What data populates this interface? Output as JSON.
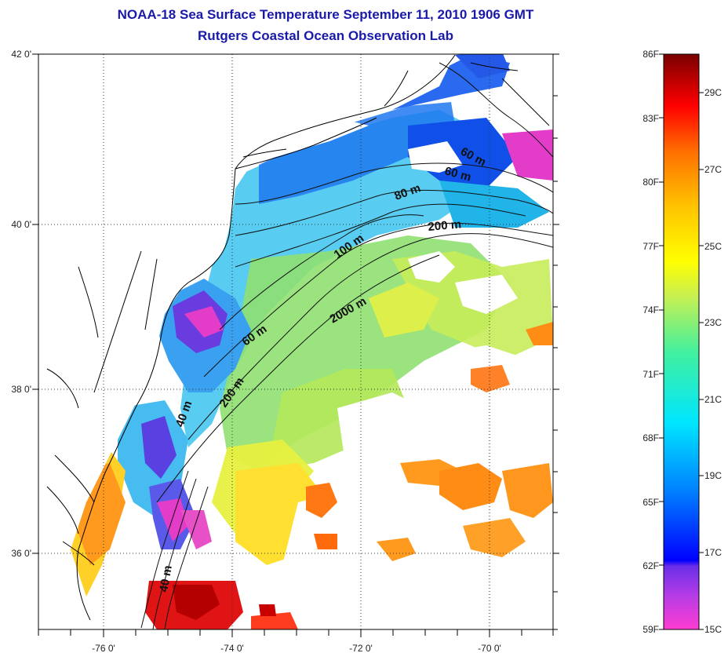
{
  "title": {
    "line1": "NOAA-18 Sea Surface Temperature September 11, 2010 1906 GMT",
    "line2": "Rutgers Coastal Ocean Observation Lab"
  },
  "map": {
    "lon_ticks": [
      "-76 0'",
      "-74 0'",
      "-72 0'",
      "-70 0'"
    ],
    "lat_ticks": [
      "42 0'",
      "40 0'",
      "38 0'",
      "36 0'"
    ],
    "contours": [
      "40 m",
      "60 m",
      "80 m",
      "100 m",
      "200 m",
      "2000 m"
    ],
    "contour_labels": [
      "60 m",
      "60 m",
      "80 m",
      "200 m",
      "100 m",
      "2000 m",
      "60 m",
      "200 m",
      "40 m",
      "40 m"
    ],
    "colors": {
      "land_and_cloud": "#ffffff",
      "coastline": "#000000"
    }
  },
  "colorbar": {
    "fahrenheit_labels": [
      "86F",
      "83F",
      "80F",
      "77F",
      "74F",
      "71F",
      "68F",
      "65F",
      "62F",
      "59F"
    ],
    "celsius_labels": [
      "29C",
      "27C",
      "25C",
      "23C",
      "21C",
      "19C",
      "17C",
      "15C"
    ],
    "range_f": [
      59,
      86
    ],
    "range_c": [
      15,
      30
    ]
  }
}
